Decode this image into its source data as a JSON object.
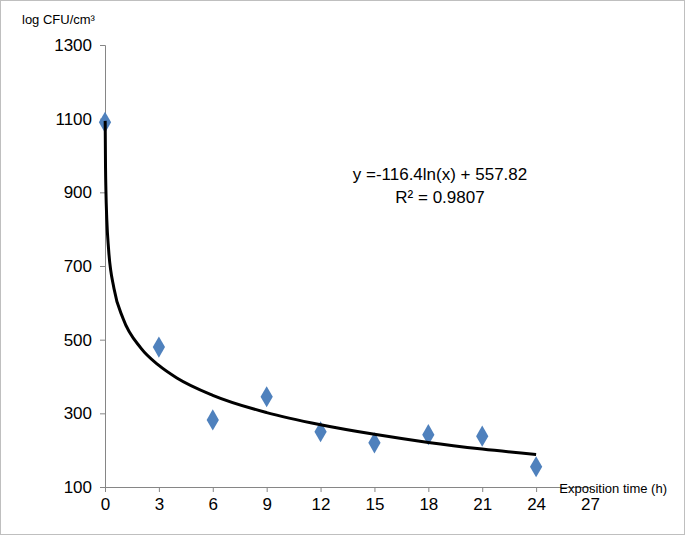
{
  "chart_data": {
    "type": "scatter",
    "y_label": "log CFU/cm³",
    "x_label": "Exposition time (h)",
    "annotations": [
      "y =-116.4ln(x) + 557.82",
      "R² = 0.9807"
    ],
    "series": [
      {
        "type": "scatter",
        "marker": "diamond",
        "color": "#4f81bd",
        "x": [
          0,
          3,
          6,
          9,
          12,
          15,
          18,
          21,
          24
        ],
        "values": [
          1090,
          480,
          282,
          345,
          250,
          220,
          242,
          238,
          155
        ]
      },
      {
        "type": "line",
        "line_style": "solid",
        "color": "#000000",
        "x": [
          0.01,
          0.03,
          0.05,
          0.1,
          0.2,
          0.5,
          1,
          2,
          3,
          4,
          6,
          9,
          12,
          15,
          18,
          21,
          24
        ],
        "values": [
          1094,
          966,
          907,
          826,
          745,
          639,
          558,
          477,
          430,
          396,
          349,
          302,
          269,
          243,
          221,
          203,
          188
        ]
      }
    ],
    "xlim": [
      0,
      27
    ],
    "xticks": [
      0,
      3,
      6,
      9,
      12,
      15,
      18,
      21,
      24,
      27
    ],
    "ylim": [
      100,
      1300
    ],
    "yticks": [
      100,
      300,
      500,
      700,
      900,
      1100,
      1300
    ],
    "grid": false
  }
}
